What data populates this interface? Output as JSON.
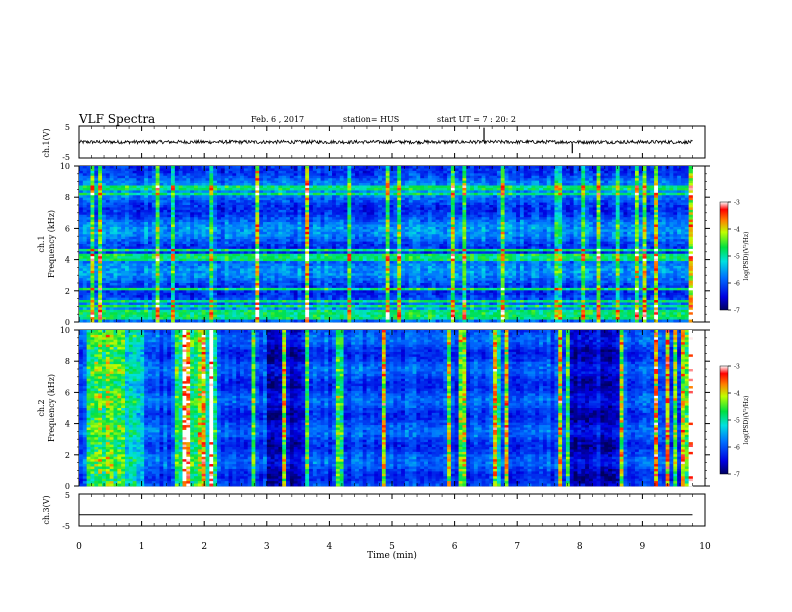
{
  "header": {
    "title": "VLF Spectra",
    "date": "Feb. 6 , 2017",
    "station": "station= HUS",
    "start": "start UT = 7 : 20: 2"
  },
  "chart_data": [
    {
      "type": "line",
      "panel": "ch1-waveform",
      "ylabel": "ch.1(V)",
      "ytick_labels": [
        "5",
        "-5"
      ],
      "ylim": [
        -5,
        5
      ],
      "xlim": [
        0,
        10
      ],
      "description_value_level": 0,
      "spikes_min": [
        6.47,
        7.88
      ]
    },
    {
      "type": "heatmap",
      "panel": "ch1-spectrogram",
      "ylabel_top": "ch.1",
      "ylabel": "Frequency (kHz)",
      "ytick_labels": [
        "0",
        "2",
        "4",
        "6",
        "8",
        "10"
      ],
      "ylim": [
        0,
        10
      ],
      "xlim": [
        0,
        9.8
      ],
      "bright_bands_khz": [
        0.3,
        0.6,
        1.0,
        1.3,
        2.1,
        4.0,
        4.2,
        4.6,
        8.2,
        8.6
      ],
      "colorbar": {
        "label": "log(PSD)(V²/Hz)",
        "ticks": [
          "-3",
          "-4",
          "-5",
          "-6",
          "-7"
        ],
        "range": [
          -7,
          -3
        ]
      }
    },
    {
      "type": "heatmap",
      "panel": "ch2-spectrogram",
      "ylabel_top": "ch.2",
      "ylabel": "Frequency (kHz)",
      "ytick_labels": [
        "0",
        "2",
        "4",
        "6",
        "8",
        "10"
      ],
      "ylim": [
        0,
        10
      ],
      "xlim": [
        0,
        9.8
      ],
      "colorbar": {
        "label": "log(PSD)(V²/Hz)",
        "ticks": [
          "-3",
          "-4",
          "-5",
          "-6",
          "-7"
        ],
        "range": [
          -7,
          -3
        ]
      }
    },
    {
      "type": "line",
      "panel": "ch3-waveform",
      "ylabel": "ch.3(V)",
      "ytick_labels": [
        "5",
        "-5"
      ],
      "ylim": [
        -5,
        5
      ],
      "xlim": [
        0,
        10
      ],
      "value_level": -1.5
    }
  ],
  "xaxis": {
    "label": "Time (min)",
    "ticks": [
      "0",
      "1",
      "2",
      "3",
      "4",
      "5",
      "6",
      "7",
      "8",
      "9",
      "10"
    ]
  }
}
